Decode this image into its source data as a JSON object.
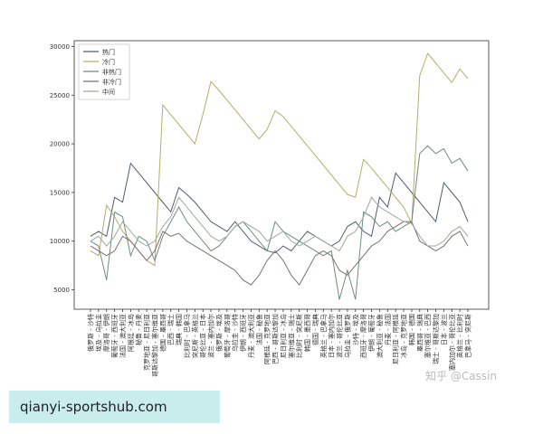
{
  "chart_data": {
    "type": "line",
    "categories": [
      "俄罗斯 - 沙特",
      "埃及 - 乌拉圭",
      "摩洛哥 - 伊朗",
      "葡萄牙 - 西班牙",
      "法国 - 澳大利亚",
      "阿根廷 - 冰岛",
      "秘鲁 - 丹麦",
      "克罗地亚 - 尼日利亚",
      "哥斯达黎加 - 塞尔维亚",
      "德国 - 墨西哥",
      "巴西 - 瑞士",
      "瑞典 - 韩国",
      "比利时 - 巴拿马",
      "突尼斯 - 英格兰",
      "哥伦比亚 - 日本",
      "波兰 - 塞内加尔",
      "俄罗斯 - 埃及",
      "葡萄牙 - 摩洛哥",
      "乌拉圭 - 沙特",
      "伊朗 - 西班牙",
      "丹麦 - 澳大利亚",
      "法国 - 秘鲁",
      "阿根廷 - 克罗地亚",
      "巴西 - 哥斯达黎加",
      "尼日利亚 - 冰岛",
      "塞尔维亚 - 瑞士",
      "比利时 - 突尼斯",
      "韩国 - 墨西哥",
      "德国 - 瑞典",
      "英格兰 - 巴拿马",
      "日本 - 塞内加尔",
      "波兰 - 哥伦比亚",
      "乌拉圭 - 俄罗斯",
      "沙特 - 埃及",
      "西班牙 - 摩洛哥",
      "伊朗 - 葡萄牙",
      "澳大利亚 - 秘鲁",
      "丹麦 - 法国",
      "尼日利亚 - 阿根廷",
      "冰岛 - 克罗地亚",
      "韩国 - 德国",
      "墨西哥 - 瑞典",
      "塞尔维亚 - 巴西",
      "瑞士 - 哥斯达黎加",
      "日本 - 波兰",
      "塞内加尔 - 哥伦比亚",
      "英格兰 - 比利时",
      "巴拿马 - 突尼斯"
    ],
    "series": [
      {
        "name": "热门",
        "color": "#4f5d6e",
        "values": [
          10500,
          11000,
          10500,
          14500,
          14000,
          18000,
          17000,
          16000,
          15000,
          14000,
          13000,
          15500,
          14800,
          14000,
          13000,
          12000,
          11500,
          11000,
          12000,
          11000,
          10000,
          9500,
          9000,
          8800,
          9500,
          9000,
          10000,
          11000,
          10500,
          10000,
          9500,
          10000,
          11500,
          12000,
          11000,
          10500,
          14500,
          13500,
          17000,
          16000,
          15000,
          14000,
          13000,
          12000,
          16000,
          15000,
          14000,
          12000
        ]
      },
      {
        "name": "冷门",
        "color": "#b3ae6a",
        "values": [
          9000,
          8500,
          13700,
          12500,
          11000,
          10000,
          9000,
          8000,
          7500,
          24000,
          23000,
          22000,
          21000,
          20000,
          23000,
          26400,
          25500,
          24500,
          23500,
          22500,
          21500,
          20500,
          21500,
          23400,
          22800,
          21800,
          20800,
          19800,
          18800,
          17800,
          16800,
          15800,
          14800,
          14500,
          18400,
          17500,
          16500,
          15500,
          14500,
          13500,
          11800,
          27000,
          29300,
          28300,
          27300,
          26300,
          27700,
          26700
        ]
      },
      {
        "name": "非热门",
        "color": "#6f8c7c",
        "values": [
          10000,
          9500,
          6000,
          13000,
          12500,
          8500,
          10500,
          10000,
          8000,
          10500,
          12000,
          13500,
          12000,
          11000,
          10000,
          9000,
          9500,
          10500,
          11500,
          12000,
          11000,
          10000,
          9000,
          12000,
          11000,
          10500,
          10000,
          9500,
          9000,
          8500,
          9000,
          4000,
          7000,
          4000,
          13000,
          12500,
          11500,
          12000,
          11000,
          11500,
          12000,
          19000,
          19800,
          19000,
          19500,
          18000,
          18500,
          17200
        ]
      },
      {
        "name": "非冷门",
        "color": "#7d6f6f",
        "values": [
          9500,
          9000,
          8500,
          9000,
          10500,
          10000,
          9000,
          8000,
          9000,
          11000,
          10500,
          10800,
          10000,
          9500,
          9000,
          8500,
          8000,
          7500,
          7000,
          6000,
          5500,
          6500,
          8000,
          9000,
          8000,
          6500,
          5500,
          7000,
          8500,
          9000,
          8500,
          7000,
          6500,
          7500,
          8500,
          9500,
          10000,
          11000,
          11500,
          12000,
          12000,
          10000,
          9500,
          9000,
          9500,
          10500,
          11000,
          9500
        ]
      },
      {
        "name": "中间",
        "color": "#9aab98",
        "values": [
          10000,
          10500,
          9500,
          10500,
          12000,
          11000,
          10000,
          9500,
          10000,
          11500,
          12500,
          14500,
          13500,
          12500,
          11500,
          10500,
          10000,
          10500,
          11500,
          12000,
          11500,
          11000,
          10000,
          10500,
          11000,
          10000,
          9500,
          10000,
          10500,
          10000,
          9500,
          9000,
          10500,
          11000,
          12500,
          14500,
          13500,
          13000,
          12500,
          12000,
          11800,
          10500,
          9500,
          9500,
          10000,
          11000,
          11500,
          10500
        ]
      }
    ],
    "ylim": [
      3000,
      30600
    ],
    "yticks": [
      5000,
      10000,
      15000,
      20000,
      25000,
      30000
    ],
    "legend": "upper-left"
  },
  "watermark": "知乎 @Cassin",
  "banner": "qianyi-sportshub.com"
}
